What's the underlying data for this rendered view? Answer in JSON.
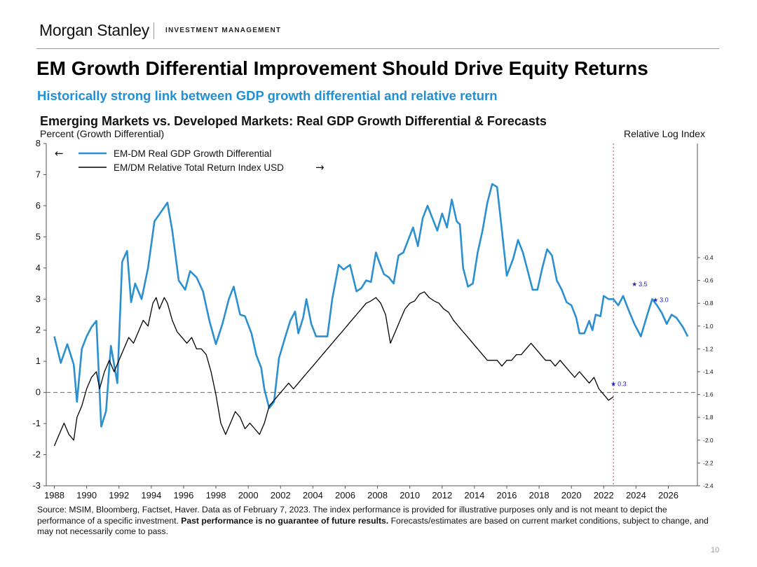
{
  "header": {
    "brand": "Morgan Stanley",
    "division": "INVESTMENT MANAGEMENT"
  },
  "slide": {
    "title": "EM Growth Differential Improvement Should Drive Equity Returns",
    "subtitle": "Historically strong link between GDP growth differential and relative return",
    "page_number": "10"
  },
  "footer": {
    "source_part1": "Source: MSIM, Bloomberg, Factset, Haver. Data as of February 7,  2023. The index performance is provided for illustrative purposes only and is not meant to depict the performance of a specific investment. ",
    "source_bold": "Past performance is no guarantee of future results.",
    "source_part2": " Forecasts/estimates are based on current market conditions, subject to change, and may not necessarily come to pass."
  },
  "colors": {
    "gdp_line": "#2b8fd0",
    "index_line": "#000000",
    "forecast_marker": "#2020d0",
    "divider": "#e03030"
  },
  "chart_data": {
    "type": "line",
    "title": "Emerging Markets vs. Developed Markets:  Real GDP Growth Differential & Forecasts",
    "ylabel": "Percent (Growth Differential)",
    "y2label": "Relative Log Index",
    "ylim": [
      -3,
      8
    ],
    "y2lim": [
      -2.4,
      0.6
    ],
    "xlim": [
      1987.5,
      2027.8
    ],
    "x_ticks": [
      "1988",
      "1990",
      "1992",
      "1994",
      "1996",
      "1998",
      "2000",
      "2002",
      "2004",
      "2006",
      "2008",
      "2010",
      "2012",
      "2014",
      "2016",
      "2018",
      "2020",
      "2022",
      "2024",
      "2026"
    ],
    "y_ticks": [
      "-3",
      "-2",
      "-1",
      "0",
      "1",
      "2",
      "3",
      "4",
      "5",
      "6",
      "7",
      "8"
    ],
    "y2_ticks": [
      "-2.4",
      "-2.2",
      "-2.0",
      "-1.8",
      "-1.6",
      "-1.4",
      "-1.2",
      "-1.0",
      "-0.8",
      "-0.6",
      "-0.4"
    ],
    "zero_line": 0,
    "forecast_divider_x": 2022.6,
    "legend": [
      {
        "label": "EM-DM Real GDP Growth Differential",
        "arrow": "←"
      },
      {
        "label": "EM/DM Relative Total Return Index USD",
        "arrow": "→"
      }
    ],
    "series": [
      {
        "name": "EM-DM Real GDP Growth Differential",
        "axis": "left",
        "points": [
          [
            1988.0,
            1.8
          ],
          [
            1988.4,
            0.95
          ],
          [
            1988.8,
            1.55
          ],
          [
            1989.2,
            0.9
          ],
          [
            1989.4,
            -0.3
          ],
          [
            1989.7,
            1.4
          ],
          [
            1990.0,
            1.8
          ],
          [
            1990.3,
            2.1
          ],
          [
            1990.6,
            2.3
          ],
          [
            1990.9,
            -1.1
          ],
          [
            1991.2,
            -0.6
          ],
          [
            1991.5,
            1.5
          ],
          [
            1991.9,
            0.3
          ],
          [
            1992.2,
            4.2
          ],
          [
            1992.5,
            4.55
          ],
          [
            1992.75,
            2.9
          ],
          [
            1993.0,
            3.5
          ],
          [
            1993.4,
            3.0
          ],
          [
            1993.8,
            4.0
          ],
          [
            1994.2,
            5.5
          ],
          [
            1994.6,
            5.8
          ],
          [
            1995.0,
            6.1
          ],
          [
            1995.3,
            5.2
          ],
          [
            1995.7,
            3.6
          ],
          [
            1996.1,
            3.3
          ],
          [
            1996.4,
            3.9
          ],
          [
            1996.8,
            3.7
          ],
          [
            1997.2,
            3.25
          ],
          [
            1997.6,
            2.3
          ],
          [
            1998.0,
            1.55
          ],
          [
            1998.4,
            2.2
          ],
          [
            1998.8,
            3.0
          ],
          [
            1999.1,
            3.4
          ],
          [
            1999.5,
            2.5
          ],
          [
            1999.8,
            2.45
          ],
          [
            2000.2,
            1.9
          ],
          [
            2000.5,
            1.2
          ],
          [
            2000.8,
            0.8
          ],
          [
            2001.0,
            0.1
          ],
          [
            2001.3,
            -0.5
          ],
          [
            2001.6,
            -0.3
          ],
          [
            2001.9,
            1.1
          ],
          [
            2002.3,
            1.8
          ],
          [
            2002.6,
            2.3
          ],
          [
            2002.9,
            2.6
          ],
          [
            2003.1,
            1.9
          ],
          [
            2003.4,
            2.4
          ],
          [
            2003.6,
            3.0
          ],
          [
            2003.9,
            2.2
          ],
          [
            2004.2,
            1.8
          ],
          [
            2004.6,
            1.8
          ],
          [
            2004.9,
            1.8
          ],
          [
            2005.2,
            3.0
          ],
          [
            2005.6,
            4.1
          ],
          [
            2005.9,
            3.95
          ],
          [
            2006.3,
            4.1
          ],
          [
            2006.7,
            3.25
          ],
          [
            2007.0,
            3.35
          ],
          [
            2007.3,
            3.6
          ],
          [
            2007.6,
            3.55
          ],
          [
            2007.9,
            4.5
          ],
          [
            2008.1,
            4.2
          ],
          [
            2008.4,
            3.8
          ],
          [
            2008.7,
            3.7
          ],
          [
            2009.0,
            3.5
          ],
          [
            2009.3,
            4.4
          ],
          [
            2009.6,
            4.5
          ],
          [
            2009.9,
            4.9
          ],
          [
            2010.2,
            5.3
          ],
          [
            2010.5,
            4.7
          ],
          [
            2010.8,
            5.6
          ],
          [
            2011.1,
            6.0
          ],
          [
            2011.4,
            5.6
          ],
          [
            2011.7,
            5.2
          ],
          [
            2012.0,
            5.75
          ],
          [
            2012.3,
            5.3
          ],
          [
            2012.6,
            6.2
          ],
          [
            2012.9,
            5.5
          ],
          [
            2013.1,
            5.4
          ],
          [
            2013.3,
            4.0
          ],
          [
            2013.6,
            3.4
          ],
          [
            2013.9,
            3.5
          ],
          [
            2014.2,
            4.5
          ],
          [
            2014.5,
            5.2
          ],
          [
            2014.8,
            6.1
          ],
          [
            2015.1,
            6.7
          ],
          [
            2015.4,
            6.6
          ],
          [
            2015.7,
            5.2
          ],
          [
            2016.0,
            3.75
          ],
          [
            2016.4,
            4.3
          ],
          [
            2016.7,
            4.9
          ],
          [
            2017.0,
            4.5
          ],
          [
            2017.3,
            3.9
          ],
          [
            2017.6,
            3.3
          ],
          [
            2017.9,
            3.3
          ],
          [
            2018.2,
            4.0
          ],
          [
            2018.5,
            4.6
          ],
          [
            2018.8,
            4.4
          ],
          [
            2019.1,
            3.6
          ],
          [
            2019.4,
            3.3
          ],
          [
            2019.7,
            2.9
          ],
          [
            2020.0,
            2.8
          ],
          [
            2020.3,
            2.4
          ],
          [
            2020.5,
            1.9
          ],
          [
            2020.8,
            1.9
          ],
          [
            2021.1,
            2.3
          ],
          [
            2021.3,
            2.0
          ],
          [
            2021.5,
            2.5
          ],
          [
            2021.8,
            2.45
          ],
          [
            2022.0,
            3.1
          ],
          [
            2022.3,
            3.0
          ],
          [
            2022.6,
            3.0
          ],
          [
            2022.9,
            2.8
          ],
          [
            2023.2,
            3.1
          ],
          [
            2023.5,
            2.7
          ],
          [
            2023.9,
            2.2
          ],
          [
            2024.3,
            1.8
          ],
          [
            2024.7,
            2.5
          ],
          [
            2025.0,
            3.0
          ],
          [
            2025.3,
            2.8
          ],
          [
            2025.6,
            2.55
          ],
          [
            2025.9,
            2.2
          ],
          [
            2026.2,
            2.5
          ],
          [
            2026.5,
            2.4
          ],
          [
            2026.9,
            2.1
          ],
          [
            2027.2,
            1.8
          ]
        ]
      },
      {
        "name": "EM/DM Relative Total Return Index USD",
        "axis": "right",
        "points": [
          [
            1988.0,
            -2.05
          ],
          [
            1988.3,
            -1.95
          ],
          [
            1988.6,
            -1.85
          ],
          [
            1988.9,
            -1.95
          ],
          [
            1989.2,
            -2.0
          ],
          [
            1989.4,
            -1.8
          ],
          [
            1989.7,
            -1.7
          ],
          [
            1990.0,
            -1.55
          ],
          [
            1990.3,
            -1.45
          ],
          [
            1990.6,
            -1.4
          ],
          [
            1990.8,
            -1.55
          ],
          [
            1991.1,
            -1.4
          ],
          [
            1991.4,
            -1.3
          ],
          [
            1991.7,
            -1.4
          ],
          [
            1992.0,
            -1.3
          ],
          [
            1992.3,
            -1.2
          ],
          [
            1992.6,
            -1.1
          ],
          [
            1992.9,
            -1.15
          ],
          [
            1993.2,
            -1.05
          ],
          [
            1993.5,
            -0.95
          ],
          [
            1993.8,
            -1.0
          ],
          [
            1994.1,
            -0.8
          ],
          [
            1994.3,
            -0.75
          ],
          [
            1994.5,
            -0.85
          ],
          [
            1994.8,
            -0.75
          ],
          [
            1995.0,
            -0.8
          ],
          [
            1995.3,
            -0.95
          ],
          [
            1995.6,
            -1.05
          ],
          [
            1995.9,
            -1.1
          ],
          [
            1996.2,
            -1.15
          ],
          [
            1996.5,
            -1.1
          ],
          [
            1996.8,
            -1.2
          ],
          [
            1997.1,
            -1.2
          ],
          [
            1997.4,
            -1.25
          ],
          [
            1997.7,
            -1.4
          ],
          [
            1998.0,
            -1.6
          ],
          [
            1998.3,
            -1.85
          ],
          [
            1998.6,
            -1.95
          ],
          [
            1998.9,
            -1.85
          ],
          [
            1999.2,
            -1.75
          ],
          [
            1999.5,
            -1.8
          ],
          [
            1999.8,
            -1.9
          ],
          [
            2000.1,
            -1.85
          ],
          [
            2000.4,
            -1.9
          ],
          [
            2000.7,
            -1.95
          ],
          [
            2001.0,
            -1.85
          ],
          [
            2001.3,
            -1.7
          ],
          [
            2001.6,
            -1.65
          ],
          [
            2001.9,
            -1.6
          ],
          [
            2002.2,
            -1.55
          ],
          [
            2002.5,
            -1.5
          ],
          [
            2002.8,
            -1.55
          ],
          [
            2003.1,
            -1.5
          ],
          [
            2003.4,
            -1.45
          ],
          [
            2003.7,
            -1.4
          ],
          [
            2004.0,
            -1.35
          ],
          [
            2004.3,
            -1.3
          ],
          [
            2004.6,
            -1.25
          ],
          [
            2004.9,
            -1.2
          ],
          [
            2005.2,
            -1.15
          ],
          [
            2005.5,
            -1.1
          ],
          [
            2005.8,
            -1.05
          ],
          [
            2006.1,
            -1.0
          ],
          [
            2006.4,
            -0.95
          ],
          [
            2006.7,
            -0.9
          ],
          [
            2007.0,
            -0.85
          ],
          [
            2007.3,
            -0.8
          ],
          [
            2007.6,
            -0.78
          ],
          [
            2007.9,
            -0.75
          ],
          [
            2008.2,
            -0.8
          ],
          [
            2008.5,
            -0.9
          ],
          [
            2008.8,
            -1.15
          ],
          [
            2009.1,
            -1.05
          ],
          [
            2009.4,
            -0.95
          ],
          [
            2009.7,
            -0.85
          ],
          [
            2010.0,
            -0.8
          ],
          [
            2010.3,
            -0.78
          ],
          [
            2010.6,
            -0.72
          ],
          [
            2010.9,
            -0.7
          ],
          [
            2011.2,
            -0.75
          ],
          [
            2011.5,
            -0.78
          ],
          [
            2011.8,
            -0.8
          ],
          [
            2012.1,
            -0.85
          ],
          [
            2012.4,
            -0.88
          ],
          [
            2012.7,
            -0.95
          ],
          [
            2013.0,
            -1.0
          ],
          [
            2013.3,
            -1.05
          ],
          [
            2013.6,
            -1.1
          ],
          [
            2013.9,
            -1.15
          ],
          [
            2014.2,
            -1.2
          ],
          [
            2014.5,
            -1.25
          ],
          [
            2014.8,
            -1.3
          ],
          [
            2015.1,
            -1.3
          ],
          [
            2015.4,
            -1.3
          ],
          [
            2015.7,
            -1.35
          ],
          [
            2016.0,
            -1.3
          ],
          [
            2016.3,
            -1.3
          ],
          [
            2016.6,
            -1.25
          ],
          [
            2016.9,
            -1.25
          ],
          [
            2017.2,
            -1.2
          ],
          [
            2017.5,
            -1.15
          ],
          [
            2017.8,
            -1.2
          ],
          [
            2018.1,
            -1.25
          ],
          [
            2018.4,
            -1.3
          ],
          [
            2018.7,
            -1.3
          ],
          [
            2019.0,
            -1.35
          ],
          [
            2019.3,
            -1.3
          ],
          [
            2019.6,
            -1.35
          ],
          [
            2019.9,
            -1.4
          ],
          [
            2020.2,
            -1.45
          ],
          [
            2020.5,
            -1.4
          ],
          [
            2020.8,
            -1.45
          ],
          [
            2021.1,
            -1.5
          ],
          [
            2021.4,
            -1.45
          ],
          [
            2021.7,
            -1.55
          ],
          [
            2022.0,
            -1.6
          ],
          [
            2022.3,
            -1.65
          ],
          [
            2022.6,
            -1.62
          ]
        ]
      }
    ],
    "forecasts": [
      {
        "year": 2022.6,
        "value": 0.3,
        "label": "0.3"
      },
      {
        "year": 2023.9,
        "value": 3.5,
        "label": "3.5"
      },
      {
        "year": 2025.2,
        "value": 3.0,
        "label": "3.0"
      }
    ]
  }
}
